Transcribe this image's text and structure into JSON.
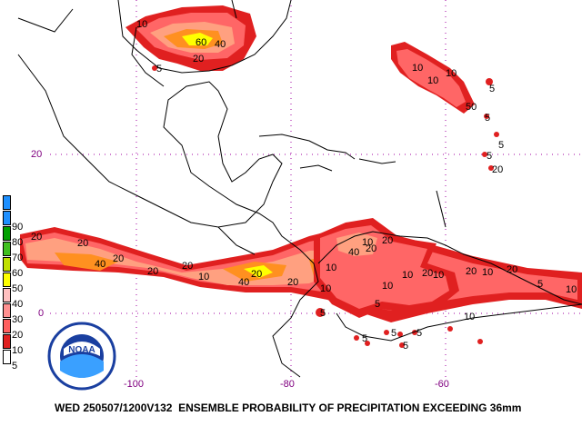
{
  "map": {
    "lat_labels": [
      {
        "value": "20"
      },
      {
        "value": "0"
      }
    ],
    "lon_labels": [
      {
        "value": "-100"
      },
      {
        "value": "-80"
      },
      {
        "value": "-60"
      }
    ],
    "footer": "WED 250507/1200V132  ENSEMBLE PROBABILITY OF PRECIPITATION EXCEEDING 36mm",
    "logo_text": "NOAA",
    "contour_labels": [
      "10",
      "60",
      "40",
      "20",
      "5",
      "10",
      "10",
      "10",
      "50",
      "5",
      "5",
      "5",
      "5",
      "20",
      "20",
      "20",
      "40",
      "20",
      "20",
      "20",
      "10",
      "20",
      "40",
      "20",
      "10",
      "40",
      "20",
      "10",
      "20",
      "10",
      "10",
      "10",
      "20",
      "10",
      "10",
      "5",
      "10",
      "5",
      "5",
      "5",
      "5",
      "5",
      "5",
      "20",
      "20",
      "10"
    ]
  },
  "legend": {
    "values": [
      "90",
      "80",
      "70",
      "60",
      "50",
      "40",
      "30",
      "20",
      "10",
      "5"
    ],
    "colors": [
      "#1e90ff",
      "#00a000",
      "#40c020",
      "#c0e000",
      "#ffff00",
      "#ffc0c0",
      "#ff9090",
      "#ff6060",
      "#e02020",
      "#ffffff"
    ],
    "top_color": "#1e90ff"
  },
  "colors": {
    "coast": "#000000",
    "grid": "#a000a0",
    "p5": "#e02020",
    "p10": "#ff6666",
    "p20": "#ffa080",
    "p40": "#ff9020",
    "p60": "#ffff00"
  }
}
